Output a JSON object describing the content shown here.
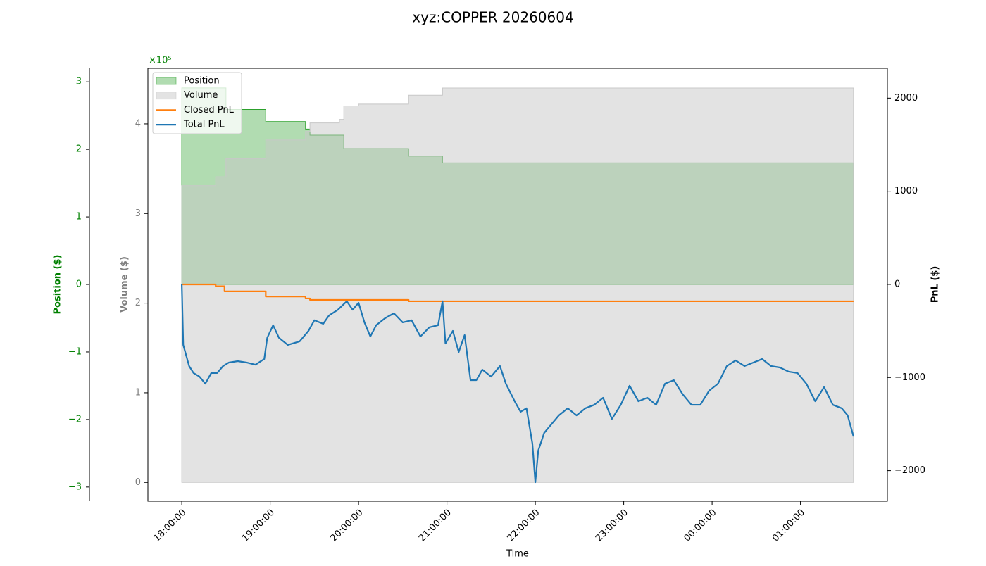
{
  "chart_data": {
    "type": "line",
    "title": "xyz:COPPER 20260604",
    "xlabel": "Time",
    "xlim": [
      "17:37:00",
      "01:59:00"
    ],
    "xticks": [
      "18:00:00",
      "19:00:00",
      "20:00:00",
      "21:00:00",
      "22:00:00",
      "23:00:00",
      "00:00:00",
      "01:00:00"
    ],
    "ylabel": "Volume ($)",
    "yoffset_label": "×10⁵",
    "ylim": [
      -21000,
      462000
    ],
    "yticks": [
      0,
      {
        "value": 100000,
        "label": "1"
      },
      {
        "value": 200000,
        "label": "2"
      },
      {
        "value": 300000,
        "label": "3"
      },
      {
        "value": 400000,
        "label": "4"
      }
    ],
    "y2label": "PnL ($)",
    "y2lim": [
      -2328,
      2320
    ],
    "y2ticks": [
      {
        "value": -2000,
        "label": "−2000"
      },
      {
        "value": -1000,
        "label": "−1000"
      },
      0,
      1000,
      2000
    ],
    "y3label": "Position ($)",
    "y3lim": [
      -3.21,
      3.2
    ],
    "y3ticks": [
      {
        "value": -3,
        "label": "−3"
      },
      {
        "value": -2,
        "label": "−2"
      },
      {
        "value": -1,
        "label": "−1"
      },
      0,
      1,
      2,
      3
    ],
    "legend": "upper left",
    "series": [
      {
        "name": "Position",
        "kind": "area",
        "axis": "y3",
        "step": true,
        "color": "#2ca02c",
        "x": [
          "18:00:00",
          "18:30:00",
          "18:57:00",
          "19:24:00",
          "19:27:00",
          "19:50:00",
          "20:34:00",
          "20:57:00",
          "01:36:00"
        ],
        "values": [
          2.91,
          2.59,
          2.41,
          2.3,
          2.21,
          2.01,
          1.9,
          1.8,
          1.79
        ]
      },
      {
        "name": "Volume",
        "kind": "area",
        "axis": "y",
        "step": true,
        "color": "#c8c8c8",
        "x": [
          "18:00:00",
          "18:23:00",
          "18:30:00",
          "18:57:00",
          "19:24:00",
          "19:27:00",
          "19:47:00",
          "19:50:00",
          "20:00:00",
          "20:34:00",
          "20:57:00",
          "01:36:00"
        ],
        "values": [
          331000,
          341000,
          361000,
          382000,
          391500,
          401000,
          405000,
          420000,
          422000,
          432000,
          440000,
          440000
        ]
      },
      {
        "name": "Closed PnL",
        "kind": "line",
        "axis": "y2",
        "step": true,
        "color": "#ff7f0e",
        "x": [
          "18:00:00",
          "18:23:00",
          "18:29:00",
          "18:57:00",
          "19:24:00",
          "19:27:00",
          "20:34:00",
          "01:36:00"
        ],
        "values": [
          0,
          -20,
          -75,
          -130,
          -151,
          -166,
          -181,
          -181
        ]
      },
      {
        "name": "Total PnL",
        "kind": "line",
        "axis": "y2",
        "step": false,
        "color": "#1f77b4",
        "x": [
          "18:00:00",
          "18:01:00",
          "18:03:00",
          "18:05:00",
          "18:08:00",
          "18:12:00",
          "18:16:00",
          "18:20:00",
          "18:24:00",
          "18:28:00",
          "18:32:00",
          "18:38:00",
          "18:44:00",
          "18:50:00",
          "18:56:00",
          "18:58:00",
          "19:02:00",
          "19:06:00",
          "19:12:00",
          "19:20:00",
          "19:26:00",
          "19:30:00",
          "19:36:00",
          "19:40:00",
          "19:46:00",
          "19:52:00",
          "19:56:00",
          "20:00:00",
          "20:04:00",
          "20:08:00",
          "20:12:00",
          "20:18:00",
          "20:24:00",
          "20:30:00",
          "20:36:00",
          "20:42:00",
          "20:48:00",
          "20:54:00",
          "20:57:00",
          "20:59:00",
          "21:04:00",
          "21:08:00",
          "21:12:00",
          "21:16:00",
          "21:20:00",
          "21:24:00",
          "21:30:00",
          "21:36:00",
          "21:40:00",
          "21:46:00",
          "21:50:00",
          "21:54:00",
          "21:58:00",
          "22:00:00",
          "22:02:00",
          "22:06:00",
          "22:10:00",
          "22:16:00",
          "22:22:00",
          "22:28:00",
          "22:34:00",
          "22:40:00",
          "22:46:00",
          "22:52:00",
          "22:58:00",
          "23:04:00",
          "23:10:00",
          "23:16:00",
          "23:22:00",
          "23:28:00",
          "23:34:00",
          "23:40:00",
          "23:46:00",
          "23:52:00",
          "23:58:00",
          "00:04:00",
          "00:10:00",
          "00:16:00",
          "00:22:00",
          "00:28:00",
          "00:34:00",
          "00:40:00",
          "00:46:00",
          "00:52:00",
          "00:58:00",
          "01:04:00",
          "01:10:00",
          "01:16:00",
          "01:22:00",
          "01:28:00",
          "01:32:00",
          "01:36:00"
        ],
        "values": [
          0,
          -650,
          -763,
          -877,
          -952,
          -990,
          -1066,
          -952,
          -952,
          -877,
          -839,
          -824,
          -839,
          -862,
          -801,
          -574,
          -438,
          -574,
          -650,
          -612,
          -499,
          -385,
          -423,
          -333,
          -272,
          -181,
          -272,
          -197,
          -408,
          -559,
          -438,
          -363,
          -310,
          -408,
          -385,
          -559,
          -461,
          -438,
          -181,
          -635,
          -499,
          -726,
          -544,
          -1028,
          -1028,
          -915,
          -990,
          -877,
          -1066,
          -1255,
          -1368,
          -1330,
          -1708,
          -2124,
          -1784,
          -1595,
          -1519,
          -1406,
          -1330,
          -1406,
          -1330,
          -1293,
          -1217,
          -1444,
          -1293,
          -1088,
          -1255,
          -1217,
          -1293,
          -1066,
          -1028,
          -1179,
          -1293,
          -1293,
          -1141,
          -1066,
          -877,
          -816,
          -877,
          -839,
          -801,
          -877,
          -892,
          -937,
          -952,
          -1066,
          -1255,
          -1103,
          -1293,
          -1330,
          -1406,
          -1633
        ]
      }
    ]
  }
}
